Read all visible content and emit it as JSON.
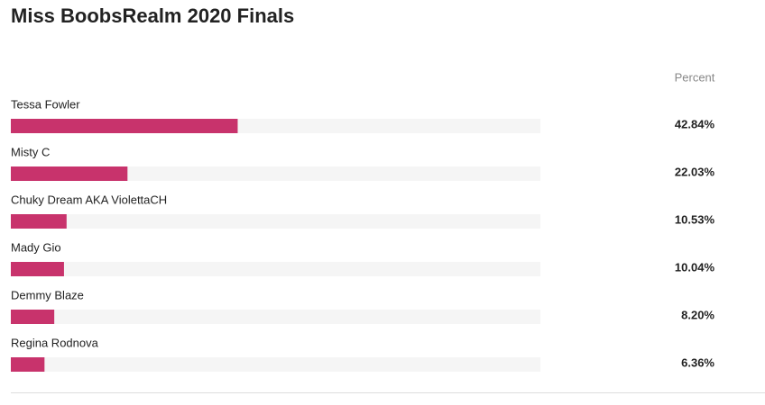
{
  "chart_data": {
    "type": "bar",
    "orientation": "horizontal",
    "title": "Miss BoobsRealm 2020 Finals",
    "column_label": "Percent",
    "categories": [
      "Tessa Fowler",
      "Misty C",
      "Chuky Dream AKA ViolettaCH",
      "Mady Gio",
      "Demmy Blaze",
      "Regina Rodnova"
    ],
    "values": [
      42.84,
      22.03,
      10.53,
      10.04,
      8.2,
      6.36
    ],
    "value_labels": [
      "42.84%",
      "22.03%",
      "10.53%",
      "10.04%",
      "8.20%",
      "6.36%"
    ],
    "color": "#c8336c",
    "xlim": [
      0,
      100
    ]
  }
}
